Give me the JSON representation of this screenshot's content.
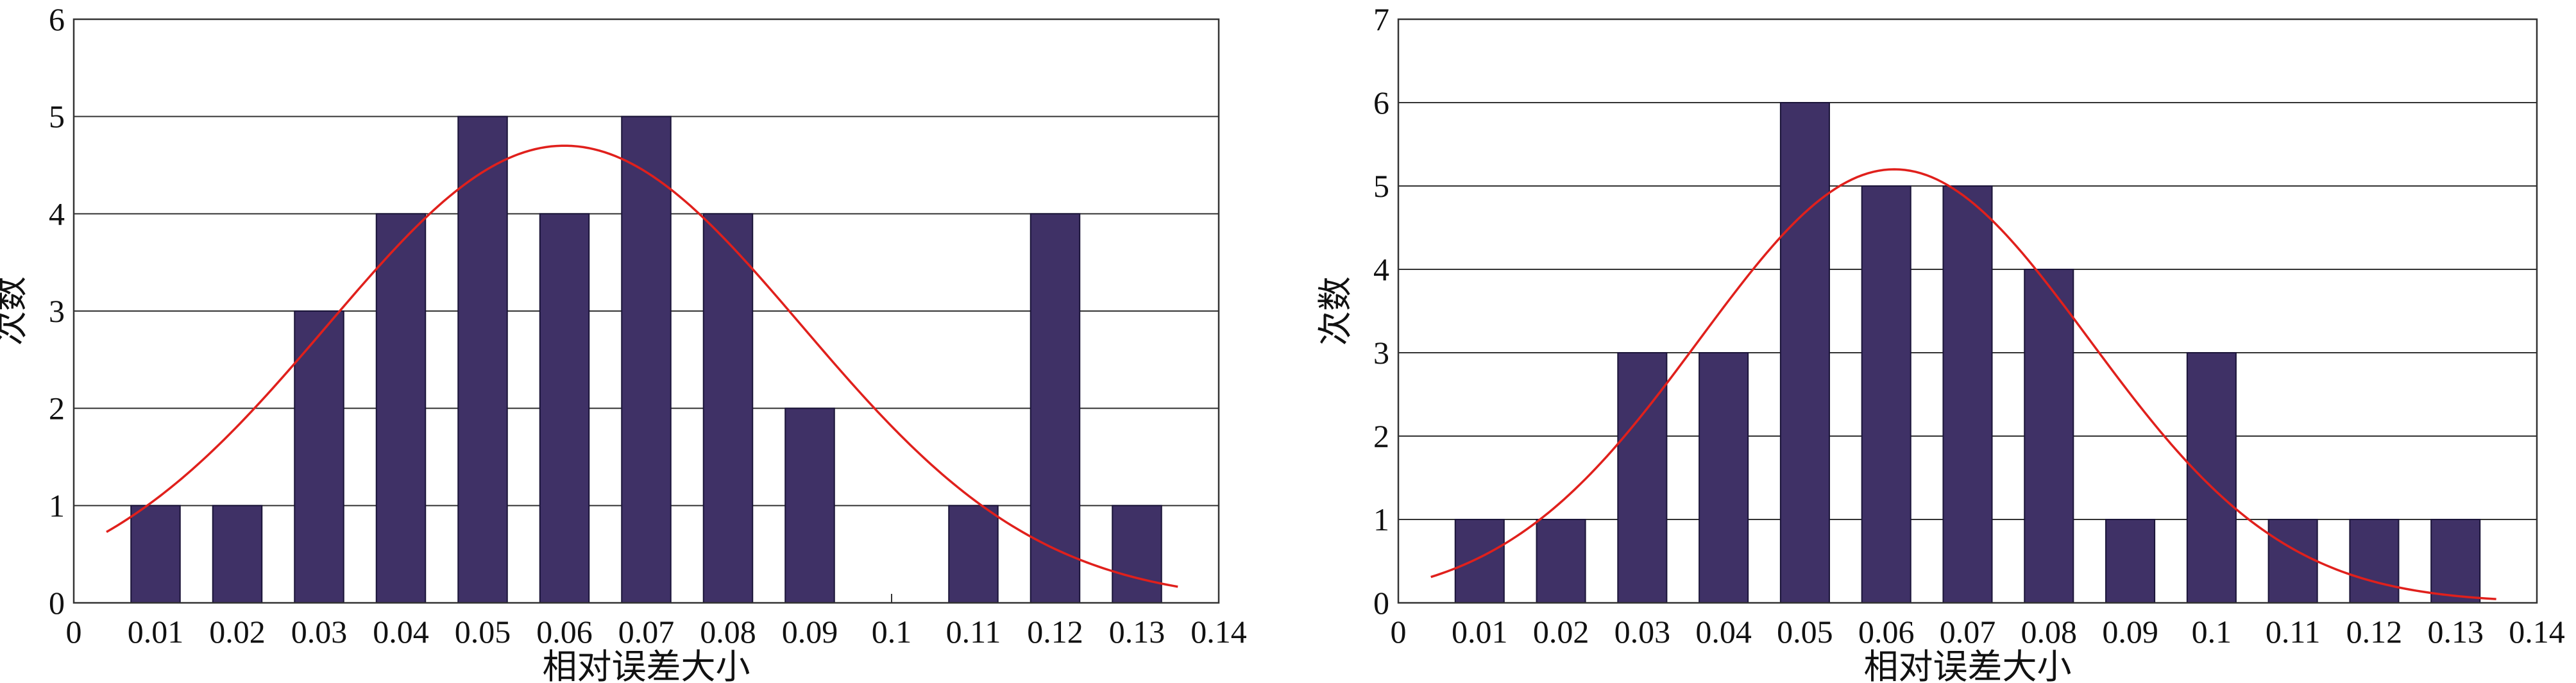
{
  "chart_data": [
    {
      "type": "bar",
      "xlabel": "相对误差大小",
      "ylabel": "次数",
      "xlim": [
        0,
        0.14
      ],
      "ylim": [
        0,
        6
      ],
      "x_ticks": [
        "0",
        "0.01",
        "0.02",
        "0.03",
        "0.04",
        "0.05",
        "0.06",
        "0.07",
        "0.08",
        "0.09",
        "0.1",
        "0.11",
        "0.12",
        "0.13",
        "0.14"
      ],
      "y_ticks": [
        "0",
        "1",
        "2",
        "3",
        "4",
        "5",
        "6"
      ],
      "categories": [
        "0.01",
        "0.02",
        "0.03",
        "0.04",
        "0.05",
        "0.06",
        "0.07",
        "0.08",
        "0.09",
        "0.1",
        "0.11",
        "0.12",
        "0.13"
      ],
      "values": [
        1,
        1,
        3,
        4,
        5,
        4,
        5,
        4,
        2,
        0,
        1,
        4,
        1
      ],
      "fit_curve": {
        "type": "normal",
        "mean": 0.06,
        "peak": 4.7,
        "sd": 0.029,
        "x_range": [
          0.004,
          0.135
        ]
      },
      "bar_color": "#3f3166",
      "curve_color": "#e0201c",
      "grid": true,
      "legend": false
    },
    {
      "type": "bar",
      "xlabel": "相对误差大小",
      "ylabel": "次数",
      "xlim": [
        0,
        0.14
      ],
      "ylim": [
        0,
        7
      ],
      "x_ticks": [
        "0",
        "0.01",
        "0.02",
        "0.03",
        "0.04",
        "0.05",
        "0.06",
        "0.07",
        "0.08",
        "0.09",
        "0.1",
        "0.11",
        "0.12",
        "0.13",
        "0.14"
      ],
      "y_ticks": [
        "0",
        "1",
        "2",
        "3",
        "4",
        "5",
        "6",
        "7"
      ],
      "categories": [
        "0.01",
        "0.02",
        "0.03",
        "0.04",
        "0.05",
        "0.06",
        "0.07",
        "0.08",
        "0.09",
        "0.1",
        "0.11",
        "0.12",
        "0.13"
      ],
      "values": [
        1,
        1,
        3,
        3,
        6,
        5,
        5,
        4,
        1,
        3,
        1,
        1,
        1
      ],
      "fit_curve": {
        "type": "normal",
        "mean": 0.061,
        "peak": 5.2,
        "sd": 0.024,
        "x_range": [
          0.004,
          0.135
        ]
      },
      "bar_color": "#3f3166",
      "curve_color": "#e0201c",
      "grid": true,
      "legend": false
    }
  ]
}
